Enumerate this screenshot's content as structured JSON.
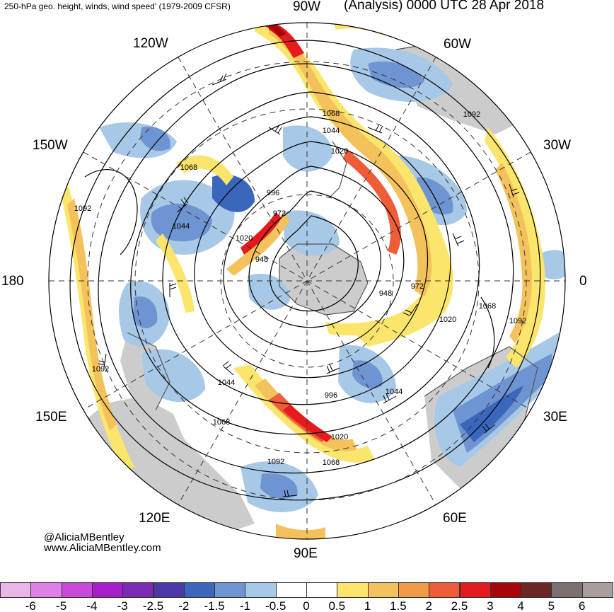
{
  "header": {
    "title_left": "250-hPa geo. height, winds, wind speed' (1979-2009 CFSR)",
    "title_right": "(Analysis) 0000 UTC 28 Apr 2018"
  },
  "longitude_labels": {
    "w90": "90W",
    "w60": "60W",
    "w120": "120W",
    "w30": "30W",
    "w150": "150W",
    "lon180": "180",
    "lon0": "0",
    "e150": "150E",
    "e30": "30E",
    "e120": "120E",
    "e60": "60E",
    "e90": "90E"
  },
  "contour_labels": [
    "1068",
    "1092",
    "1044",
    "1020",
    "996",
    "972",
    "948",
    "972",
    "948",
    "1020",
    "1068",
    "1092",
    "1044",
    "1020",
    "996",
    "1044",
    "1068",
    "1092",
    "1092",
    "1068",
    "1020",
    "1044",
    "1068",
    "1092"
  ],
  "credits": {
    "twitter": "@AliciaMBentley",
    "website": "www.AliciaMBentley.com"
  },
  "colorbar": {
    "labels": [
      "-6",
      "-5",
      "-4",
      "-3",
      "-2.5",
      "-2",
      "-1.5",
      "-1",
      "-0.5",
      "0",
      "0.5",
      "1",
      "1.5",
      "2",
      "2.5",
      "3",
      "4",
      "5",
      "6"
    ],
    "colors": [
      "#e8b7e8",
      "#de80e6",
      "#c94ad8",
      "#a81ccc",
      "#7a2ab4",
      "#4a3aa8",
      "#3a66bc",
      "#6f94d2",
      "#a7c8e6",
      "#ffffff",
      "#ffffff",
      "#fbe56c",
      "#f4c25c",
      "#f19a48",
      "#ee5c38",
      "#e41a1c",
      "#a8050a",
      "#6c2626",
      "#7a7070",
      "#a89e9e"
    ]
  },
  "colors": {
    "land": "#cccccc",
    "coast": "#555555",
    "contour": "#000000",
    "blue_light": "#a7c8e6",
    "blue_mid": "#6f94d2",
    "blue_dark": "#3a66bc",
    "yellow": "#fbe56c",
    "orange": "#f4c25c",
    "red": "#e41a1c"
  }
}
